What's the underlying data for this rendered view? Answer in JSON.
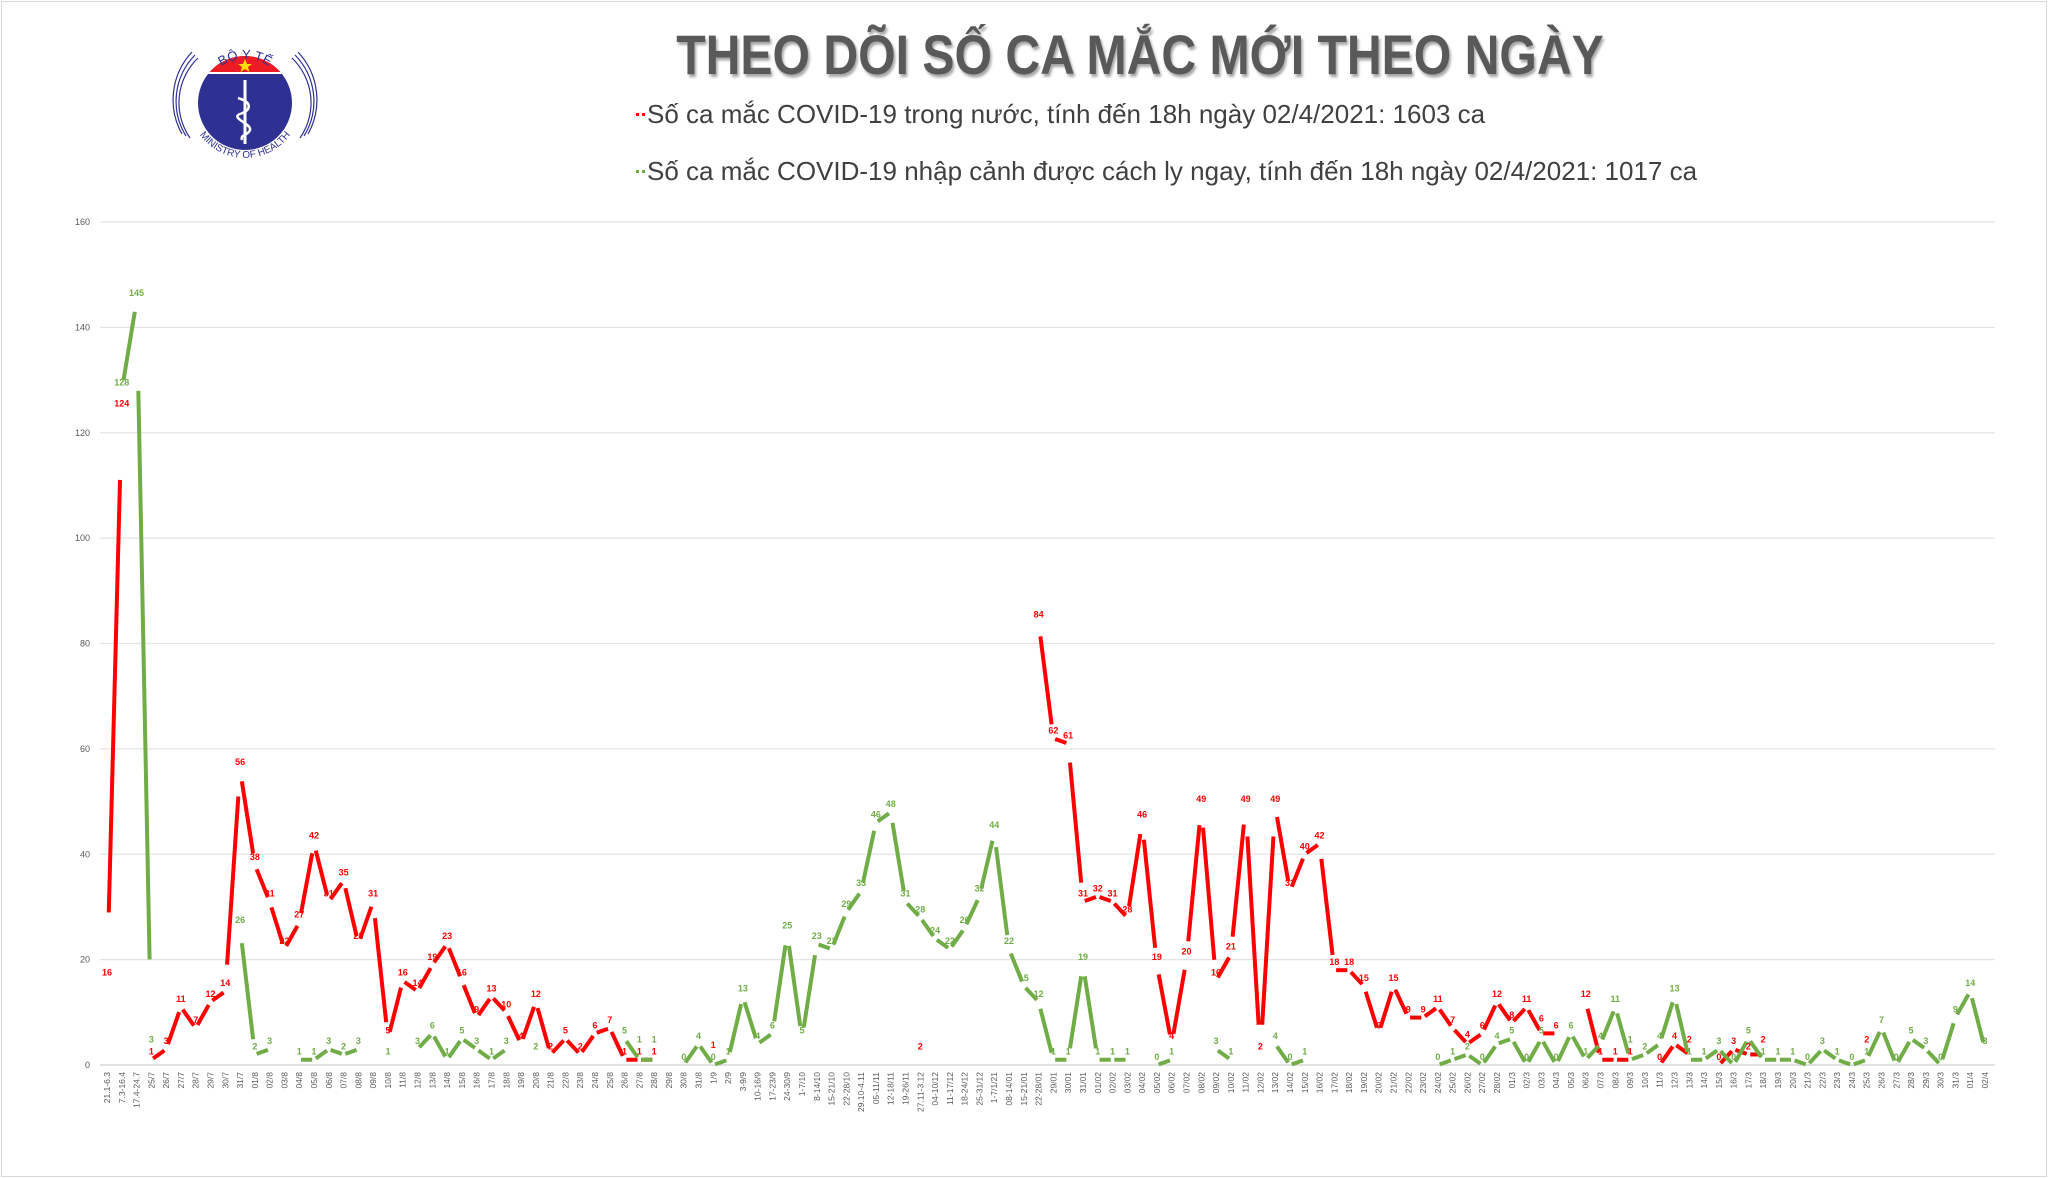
{
  "header": {
    "title": "THEO DÕI SỐ CA MẮC MỚI THEO NGÀY",
    "logo_text_top": "BỘ Y TẾ",
    "logo_text_bottom": "MINISTRY OF HEALTH",
    "legend": [
      {
        "text": "Số ca mắc COVID-19 trong nước, tính đến 18h ngày 02/4/2021: 1603 ca",
        "color": "#ff0000"
      },
      {
        "text": "Số ca mắc COVID-19 nhập cảnh được cách ly ngay, tính đến 18h ngày 02/4/2021: 1017 ca",
        "color": "#70ad47"
      }
    ]
  },
  "chart_data": {
    "type": "line",
    "title": "THEO DÕI SỐ CA MẮC MỚI THEO NGÀY",
    "ylim": [
      0,
      160
    ],
    "yticks": [
      0,
      20,
      40,
      60,
      80,
      100,
      120,
      140,
      160
    ],
    "grid": true,
    "data_labels": true,
    "categories": [
      "21.1-6.3",
      "7.3-16.4",
      "17.4-24.7",
      "25/7",
      "26/7",
      "27/7",
      "28/7",
      "29/7",
      "30/7",
      "31/7",
      "01/8",
      "02/8",
      "03/8",
      "04/8",
      "05/8",
      "06/8",
      "07/8",
      "08/8",
      "09/8",
      "10/8",
      "11/8",
      "12/8",
      "13/8",
      "14/8",
      "15/8",
      "16/8",
      "17/8",
      "18/8",
      "19/8",
      "20/8",
      "21/8",
      "22/8",
      "23/8",
      "24/8",
      "25/8",
      "26/8",
      "27/8",
      "28/8",
      "29/8",
      "30/8",
      "31/8",
      "1/9",
      "2/9",
      "3-9/9",
      "10-16/9",
      "17-23/9",
      "24-30/9",
      "1-7/10",
      "8-14/10",
      "15-21/10",
      "22-28/10",
      "29.10-4.11",
      "05-11/11",
      "12-18/11",
      "19-26/11",
      "27.11-3.12",
      "04-10/12",
      "11-17/12",
      "18-24/12",
      "25-31/12",
      "1-7/1/21",
      "08-14/01",
      "15-21/01",
      "22-28/01",
      "29/01",
      "30/01",
      "31/01",
      "01/02",
      "02/02",
      "03/02",
      "04/02",
      "05/02",
      "06/02",
      "07/02",
      "08/02",
      "09/02",
      "10/02",
      "11/02",
      "12/02",
      "13/02",
      "14/02",
      "15/02",
      "16/02",
      "17/02",
      "18/02",
      "19/02",
      "20/02",
      "21/02",
      "22/02",
      "23/02",
      "24/02",
      "25/02",
      "26/02",
      "27/02",
      "28/02",
      "01/3",
      "02/3",
      "03/3",
      "04/3",
      "05/3",
      "06/3",
      "07/3",
      "08/3",
      "09/3",
      "10/3",
      "11/3",
      "12/3",
      "13/3",
      "14/3",
      "15/3",
      "16/3",
      "17/3",
      "18/3",
      "19/3",
      "20/3",
      "21/3",
      "22/3",
      "23/3",
      "24/3",
      "25/3",
      "26/3",
      "27/3",
      "28/3",
      "29/3",
      "30/3",
      "31/3",
      "01/4",
      "02/4"
    ],
    "series": [
      {
        "key": "domestic",
        "color": "#ff0000",
        "values": [
          16,
          124,
          null,
          1,
          3,
          11,
          7,
          12,
          14,
          56,
          38,
          31,
          22,
          27,
          42,
          31,
          35,
          23,
          31,
          5,
          16,
          14,
          19,
          23,
          16,
          9,
          13,
          10,
          4,
          12,
          2,
          5,
          2,
          6,
          7,
          1,
          1,
          1,
          null,
          null,
          null,
          1,
          null,
          null,
          null,
          null,
          null,
          null,
          null,
          null,
          null,
          null,
          null,
          null,
          null,
          2,
          null,
          null,
          null,
          null,
          null,
          null,
          null,
          84,
          62,
          61,
          31,
          32,
          31,
          28,
          46,
          19,
          4,
          20,
          49,
          16,
          21,
          49,
          2,
          49,
          33,
          40,
          42,
          18,
          18,
          15,
          6,
          15,
          9,
          9,
          11,
          7,
          4,
          6,
          12,
          8,
          11,
          6,
          6,
          null,
          12,
          1,
          1,
          1,
          null,
          0,
          4,
          2,
          null,
          0,
          3,
          2,
          2,
          null,
          null,
          null,
          null,
          null,
          null,
          2,
          null,
          null,
          null,
          null,
          null,
          null,
          null,
          null
        ]
      },
      {
        "key": "imported",
        "color": "#70ad47",
        "values": [
          null,
          128,
          145,
          3,
          null,
          null,
          null,
          null,
          null,
          26,
          2,
          3,
          null,
          1,
          1,
          3,
          2,
          3,
          null,
          1,
          null,
          3,
          6,
          1,
          5,
          3,
          1,
          3,
          null,
          2,
          null,
          null,
          null,
          null,
          null,
          5,
          1,
          1,
          null,
          0,
          4,
          0,
          1,
          13,
          4,
          6,
          25,
          5,
          23,
          22,
          29,
          33,
          46,
          48,
          31,
          28,
          24,
          22,
          26,
          32,
          44,
          22,
          15,
          12,
          1,
          1,
          19,
          1,
          1,
          1,
          null,
          0,
          1,
          null,
          null,
          3,
          1,
          null,
          null,
          4,
          0,
          1,
          null,
          null,
          null,
          null,
          null,
          null,
          null,
          null,
          0,
          1,
          2,
          0,
          4,
          5,
          0,
          5,
          0,
          6,
          1,
          4,
          11,
          1,
          2,
          4,
          13,
          1,
          1,
          3,
          0,
          5,
          1,
          1,
          1,
          0,
          3,
          1,
          0,
          1,
          7,
          0,
          5,
          3,
          0,
          9,
          14,
          3
        ]
      }
    ]
  }
}
